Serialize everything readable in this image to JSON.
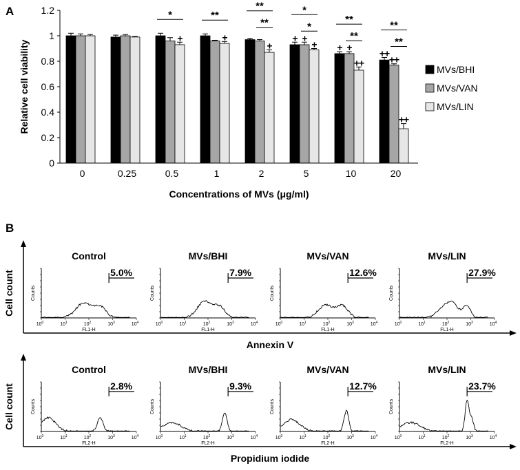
{
  "panel_a_letter": "A",
  "panel_b_letter": "B",
  "colors": {
    "black": "#000000",
    "gray": "#a6a6a6",
    "light": "#e6e6e6"
  },
  "chart_data": [
    {
      "type": "bar",
      "xlabel": "Concentrations of MVs (μg/ml)",
      "ylabel": "Relative cell viability",
      "ylim": [
        0,
        1.2
      ],
      "yticks": [
        "0",
        "0.2",
        "0.4",
        "0.6",
        "0.8",
        "1",
        "1.2"
      ],
      "categories": [
        "0",
        "0.25",
        "0.5",
        "1",
        "2",
        "5",
        "10",
        "20"
      ],
      "legend_position": "right",
      "series": [
        {
          "name": "MVs/BHI",
          "color": "#000000",
          "values": [
            1.0,
            0.99,
            1.0,
            1.0,
            0.97,
            0.93,
            0.86,
            0.81
          ],
          "errors": [
            0.02,
            0.015,
            0.02,
            0.015,
            0.01,
            0.02,
            0.015,
            0.02
          ],
          "marks": [
            "",
            "",
            "",
            "",
            "",
            "+",
            "+",
            "++"
          ]
        },
        {
          "name": "MVs/VAN",
          "color": "#a6a6a6",
          "values": [
            1.0,
            1.0,
            0.96,
            0.96,
            0.96,
            0.93,
            0.86,
            0.77
          ],
          "errors": [
            0.015,
            0.01,
            0.025,
            0.005,
            0.01,
            0.02,
            0.015,
            0.01
          ],
          "marks": [
            "",
            "",
            "",
            "",
            "",
            "+",
            "+",
            "++"
          ]
        },
        {
          "name": "MVs/LIN",
          "color": "#e6e6e6",
          "values": [
            1.0,
            0.99,
            0.93,
            0.94,
            0.87,
            0.89,
            0.73,
            0.27
          ],
          "errors": [
            0.01,
            0.005,
            0.02,
            0.015,
            0.02,
            0.01,
            0.025,
            0.04
          ],
          "marks": [
            "",
            "",
            "+",
            "+",
            "+",
            "+",
            "++",
            "++"
          ]
        }
      ],
      "significance": [
        {
          "category": 2,
          "from_series": 0,
          "to_series": 2,
          "label": "*"
        },
        {
          "category": 3,
          "from_series": 0,
          "to_series": 2,
          "label": "**"
        },
        {
          "category": 4,
          "from_series": 0,
          "to_series": 2,
          "label": "**"
        },
        {
          "category": 4,
          "from_series": 1,
          "to_series": 2,
          "label": "**"
        },
        {
          "category": 5,
          "from_series": 0,
          "to_series": 2,
          "label": "*"
        },
        {
          "category": 5,
          "from_series": 1,
          "to_series": 2,
          "label": "*"
        },
        {
          "category": 6,
          "from_series": 0,
          "to_series": 2,
          "label": "**"
        },
        {
          "category": 6,
          "from_series": 1,
          "to_series": 2,
          "label": "**"
        },
        {
          "category": 7,
          "from_series": 0,
          "to_series": 2,
          "label": "**"
        },
        {
          "category": 7,
          "from_series": 1,
          "to_series": 2,
          "label": "**"
        }
      ]
    },
    {
      "type": "histogram",
      "row_label": "Annexin V",
      "outer_ylabel": "Cell count",
      "axis_xlabel": "FL1-H",
      "axis_ylabel": "Counts",
      "x_scale": "log",
      "xlim": [
        1,
        10000
      ],
      "tick_labels": [
        "10",
        "10",
        "10",
        "10",
        "10"
      ],
      "tick_exponents": [
        "0",
        "1",
        "2",
        "3",
        "4"
      ],
      "gate_start": 700,
      "panels": [
        {
          "title": "Control",
          "percent": "5.0%",
          "peaks": [
            {
              "x": 60,
              "h": 0.3,
              "w": 0.33
            },
            {
              "x": 300,
              "h": 0.22,
              "w": 0.25
            }
          ]
        },
        {
          "title": "MVs/BHI",
          "percent": "7.9%",
          "peaks": [
            {
              "x": 70,
              "h": 0.33,
              "w": 0.3
            },
            {
              "x": 300,
              "h": 0.22,
              "w": 0.25
            }
          ]
        },
        {
          "title": "MVs/VAN",
          "percent": "12.6%",
          "peaks": [
            {
              "x": 80,
              "h": 0.26,
              "w": 0.3
            },
            {
              "x": 400,
              "h": 0.24,
              "w": 0.25
            }
          ]
        },
        {
          "title": "MVs/LIN",
          "percent": "27.9%",
          "peaks": [
            {
              "x": 80,
              "h": 0.22,
              "w": 0.3
            },
            {
              "x": 200,
              "h": 0.2,
              "w": 0.25
            },
            {
              "x": 700,
              "h": 0.24,
              "w": 0.15
            }
          ]
        }
      ]
    },
    {
      "type": "histogram",
      "row_label": "Propidium iodide",
      "outer_ylabel": "Cell count",
      "axis_xlabel": "FL2-H",
      "axis_ylabel": "Counts",
      "x_scale": "log",
      "xlim": [
        1,
        10000
      ],
      "tick_labels": [
        "10",
        "10",
        "10",
        "10",
        "10"
      ],
      "tick_exponents": [
        "0",
        "1",
        "2",
        "3",
        "4"
      ],
      "gate_start": 700,
      "panels": [
        {
          "title": "Control",
          "percent": "2.8%",
          "peaks": [
            {
              "x": 2,
              "h": 0.28,
              "w": 0.3
            },
            {
              "x": 300,
              "h": 0.28,
              "w": 0.12
            }
          ]
        },
        {
          "title": "MVs/BHI",
          "percent": "9.3%",
          "peaks": [
            {
              "x": 3,
              "h": 0.18,
              "w": 0.4
            },
            {
              "x": 500,
              "h": 0.38,
              "w": 0.1
            }
          ]
        },
        {
          "title": "MVs/VAN",
          "percent": "12.7%",
          "peaks": [
            {
              "x": 3,
              "h": 0.24,
              "w": 0.35
            },
            {
              "x": 600,
              "h": 0.42,
              "w": 0.1
            }
          ]
        },
        {
          "title": "MVs/LIN",
          "percent": "23.7%",
          "peaks": [
            {
              "x": 3,
              "h": 0.18,
              "w": 0.4
            },
            {
              "x": 700,
              "h": 0.62,
              "w": 0.08
            },
            {
              "x": 1100,
              "h": 0.25,
              "w": 0.08
            }
          ]
        }
      ]
    }
  ]
}
